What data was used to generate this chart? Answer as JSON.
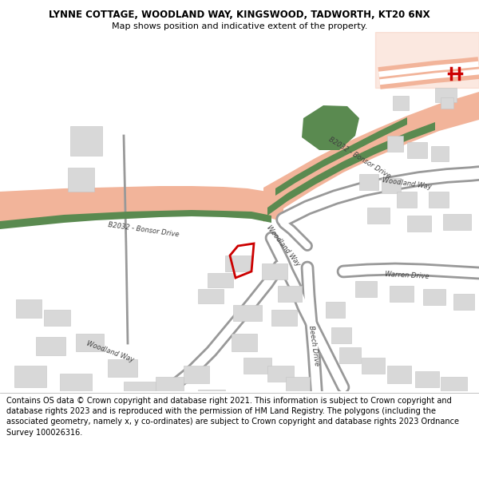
{
  "title_line1": "LYNNE COTTAGE, WOODLAND WAY, KINGSWOOD, TADWORTH, KT20 6NX",
  "title_line2": "Map shows position and indicative extent of the property.",
  "footer_text": "Contains OS data © Crown copyright and database right 2021. This information is subject to Crown copyright and database rights 2023 and is reproduced with the permission of HM Land Registry. The polygons (including the associated geometry, namely x, y co-ordinates) are subject to Crown copyright and database rights 2023 Ordnance Survey 100026316.",
  "title_fontsize": 8.5,
  "subtitle_fontsize": 8.0,
  "footer_fontsize": 7.0,
  "map_bg_color": "#f5f5f5",
  "title_bg_color": "#ffffff",
  "footer_bg_color": "#ffffff",
  "fig_width": 6.0,
  "fig_height": 6.25,
  "dpi": 100,
  "road_salmon_color": "#f2b49a",
  "road_green_color": "#5a8a50",
  "road_white_color": "#ffffff",
  "building_color": "#d8d8d8",
  "building_edge_color": "#c4c4c4",
  "plot_outline_color": "#cc0000",
  "text_color": "#404040",
  "title_color": "#000000",
  "railway_color": "#cc0000",
  "road_edge_color": "#999999"
}
